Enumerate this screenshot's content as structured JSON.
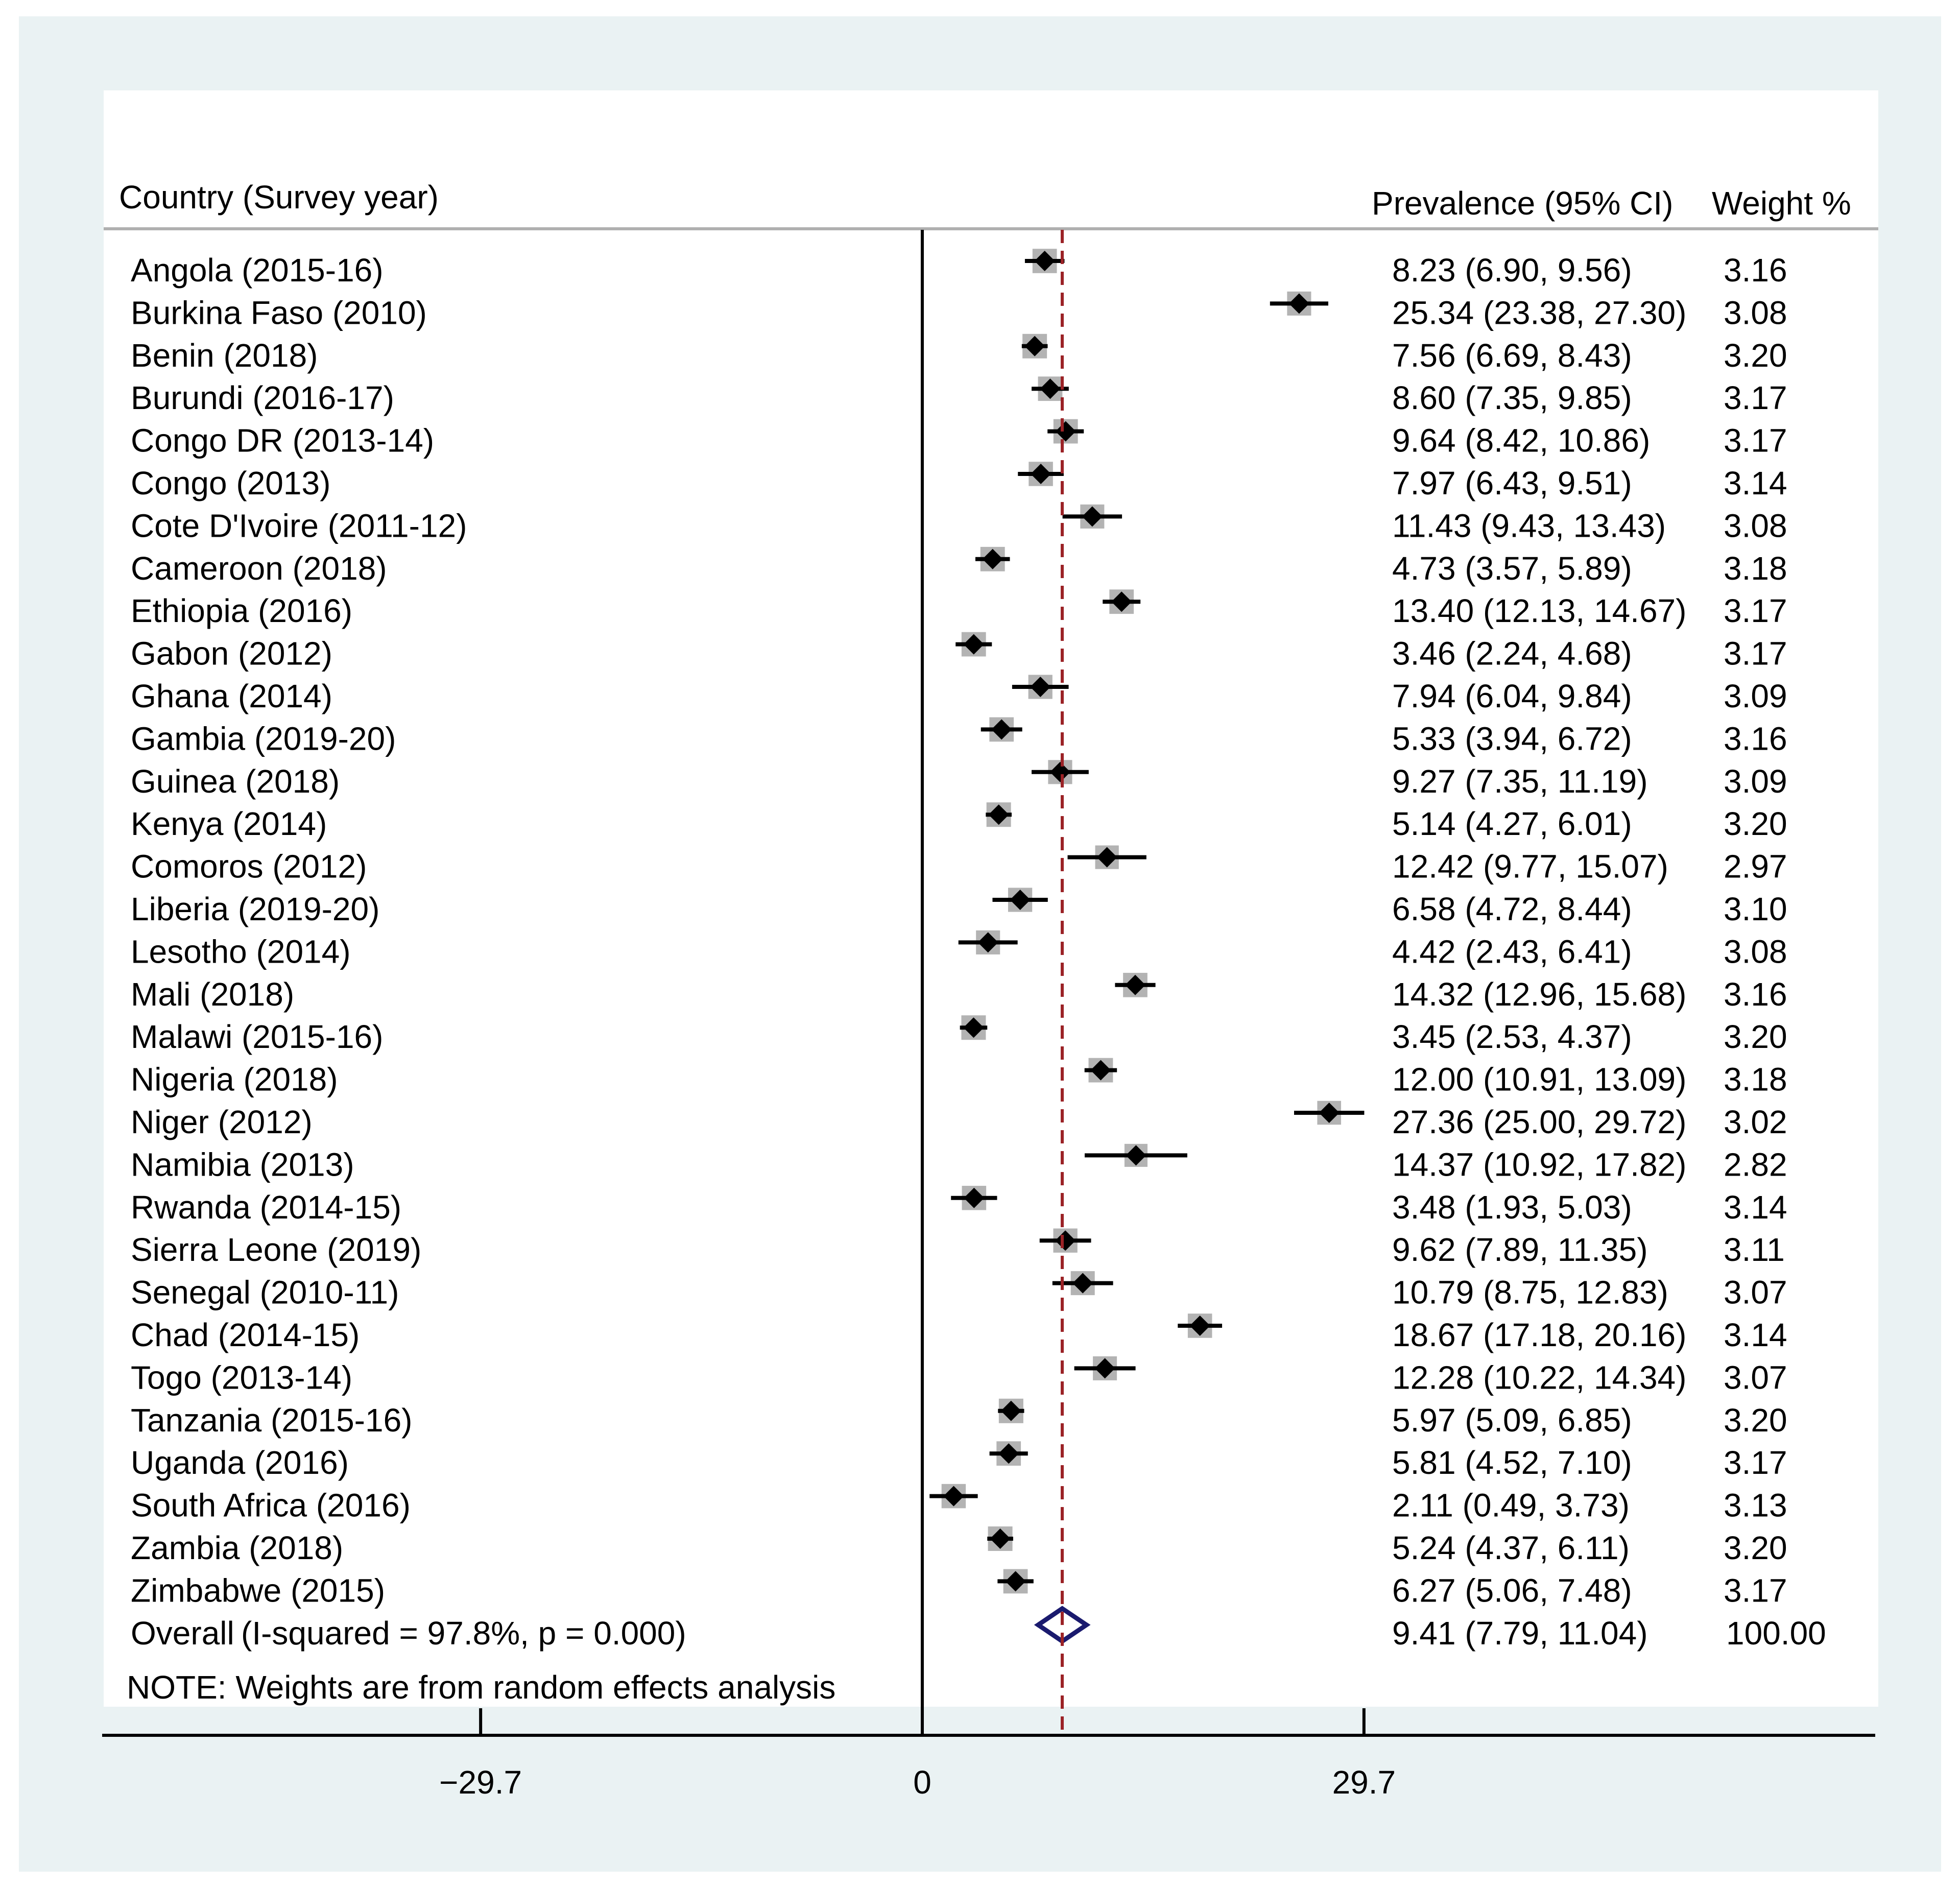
{
  "chart_data": {
    "type": "forest",
    "header": {
      "study_label": "Country (Survey year)",
      "estimate_label": "Prevalence (95% CI)",
      "weight_label": "Weight %"
    },
    "x_axis": {
      "ticks": [
        -29.7,
        0,
        29.7
      ],
      "tick_labels": [
        "−29.7",
        "0",
        "29.7"
      ],
      "xlim": [
        -55,
        64.5
      ]
    },
    "reference_line_value": 9.41,
    "studies": [
      {
        "label": "Angola (2015-16)",
        "est": 8.23,
        "lo": 6.9,
        "hi": 9.56,
        "ci_text": "8.23 (6.90, 9.56)",
        "weight": "3.16"
      },
      {
        "label": "Burkina Faso (2010)",
        "est": 25.34,
        "lo": 23.38,
        "hi": 27.3,
        "ci_text": "25.34 (23.38, 27.30)",
        "weight": "3.08"
      },
      {
        "label": "Benin (2018)",
        "est": 7.56,
        "lo": 6.69,
        "hi": 8.43,
        "ci_text": "7.56 (6.69, 8.43)",
        "weight": "3.20"
      },
      {
        "label": "Burundi (2016-17)",
        "est": 8.6,
        "lo": 7.35,
        "hi": 9.85,
        "ci_text": "8.60 (7.35, 9.85)",
        "weight": "3.17"
      },
      {
        "label": "Congo DR (2013-14)",
        "est": 9.64,
        "lo": 8.42,
        "hi": 10.86,
        "ci_text": "9.64 (8.42, 10.86)",
        "weight": "3.17"
      },
      {
        "label": "Congo (2013)",
        "est": 7.97,
        "lo": 6.43,
        "hi": 9.51,
        "ci_text": "7.97 (6.43, 9.51)",
        "weight": "3.14"
      },
      {
        "label": "Cote D'Ivoire (2011-12)",
        "est": 11.43,
        "lo": 9.43,
        "hi": 13.43,
        "ci_text": "11.43 (9.43, 13.43)",
        "weight": "3.08"
      },
      {
        "label": "Cameroon (2018)",
        "est": 4.73,
        "lo": 3.57,
        "hi": 5.89,
        "ci_text": "4.73 (3.57, 5.89)",
        "weight": "3.18"
      },
      {
        "label": "Ethiopia (2016)",
        "est": 13.4,
        "lo": 12.13,
        "hi": 14.67,
        "ci_text": "13.40 (12.13, 14.67)",
        "weight": "3.17"
      },
      {
        "label": "Gabon (2012)",
        "est": 3.46,
        "lo": 2.24,
        "hi": 4.68,
        "ci_text": "3.46 (2.24, 4.68)",
        "weight": "3.17"
      },
      {
        "label": "Ghana (2014)",
        "est": 7.94,
        "lo": 6.04,
        "hi": 9.84,
        "ci_text": "7.94 (6.04, 9.84)",
        "weight": "3.09"
      },
      {
        "label": "Gambia (2019-20)",
        "est": 5.33,
        "lo": 3.94,
        "hi": 6.72,
        "ci_text": "5.33 (3.94, 6.72)",
        "weight": "3.16"
      },
      {
        "label": "Guinea (2018)",
        "est": 9.27,
        "lo": 7.35,
        "hi": 11.19,
        "ci_text": "9.27 (7.35, 11.19)",
        "weight": "3.09"
      },
      {
        "label": "Kenya (2014)",
        "est": 5.14,
        "lo": 4.27,
        "hi": 6.01,
        "ci_text": "5.14 (4.27, 6.01)",
        "weight": "3.20"
      },
      {
        "label": "Comoros (2012)",
        "est": 12.42,
        "lo": 9.77,
        "hi": 15.07,
        "ci_text": "12.42 (9.77, 15.07)",
        "weight": "2.97"
      },
      {
        "label": "Liberia (2019-20)",
        "est": 6.58,
        "lo": 4.72,
        "hi": 8.44,
        "ci_text": "6.58 (4.72, 8.44)",
        "weight": "3.10"
      },
      {
        "label": "Lesotho (2014)",
        "est": 4.42,
        "lo": 2.43,
        "hi": 6.41,
        "ci_text": "4.42 (2.43, 6.41)",
        "weight": "3.08"
      },
      {
        "label": "Mali (2018)",
        "est": 14.32,
        "lo": 12.96,
        "hi": 15.68,
        "ci_text": "14.32 (12.96, 15.68)",
        "weight": "3.16"
      },
      {
        "label": "Malawi (2015-16)",
        "est": 3.45,
        "lo": 2.53,
        "hi": 4.37,
        "ci_text": "3.45 (2.53, 4.37)",
        "weight": "3.20"
      },
      {
        "label": "Nigeria (2018)",
        "est": 12.0,
        "lo": 10.91,
        "hi": 13.09,
        "ci_text": "12.00 (10.91, 13.09)",
        "weight": "3.18"
      },
      {
        "label": "Niger (2012)",
        "est": 27.36,
        "lo": 25.0,
        "hi": 29.72,
        "ci_text": "27.36 (25.00, 29.72)",
        "weight": "3.02"
      },
      {
        "label": "Namibia (2013)",
        "est": 14.37,
        "lo": 10.92,
        "hi": 17.82,
        "ci_text": "14.37 (10.92, 17.82)",
        "weight": "2.82"
      },
      {
        "label": "Rwanda (2014-15)",
        "est": 3.48,
        "lo": 1.93,
        "hi": 5.03,
        "ci_text": "3.48 (1.93, 5.03)",
        "weight": "3.14"
      },
      {
        "label": "Sierra Leone (2019)",
        "est": 9.62,
        "lo": 7.89,
        "hi": 11.35,
        "ci_text": "9.62 (7.89, 11.35)",
        "weight": "3.11"
      },
      {
        "label": "Senegal (2010-11)",
        "est": 10.79,
        "lo": 8.75,
        "hi": 12.83,
        "ci_text": "10.79 (8.75, 12.83)",
        "weight": "3.07"
      },
      {
        "label": "Chad (2014-15)",
        "est": 18.67,
        "lo": 17.18,
        "hi": 20.16,
        "ci_text": "18.67 (17.18, 20.16)",
        "weight": "3.14"
      },
      {
        "label": "Togo (2013-14)",
        "est": 12.28,
        "lo": 10.22,
        "hi": 14.34,
        "ci_text": "12.28 (10.22, 14.34)",
        "weight": "3.07"
      },
      {
        "label": "Tanzania (2015-16)",
        "est": 5.97,
        "lo": 5.09,
        "hi": 6.85,
        "ci_text": "5.97 (5.09, 6.85)",
        "weight": "3.20"
      },
      {
        "label": "Uganda (2016)",
        "est": 5.81,
        "lo": 4.52,
        "hi": 7.1,
        "ci_text": "5.81 (4.52, 7.10)",
        "weight": "3.17"
      },
      {
        "label": "South Africa (2016)",
        "est": 2.11,
        "lo": 0.49,
        "hi": 3.73,
        "ci_text": "2.11 (0.49, 3.73)",
        "weight": "3.13"
      },
      {
        "label": "Zambia (2018)",
        "est": 5.24,
        "lo": 4.37,
        "hi": 6.11,
        "ci_text": "5.24 (4.37, 6.11)",
        "weight": "3.20"
      },
      {
        "label": "Zimbabwe (2015)",
        "est": 6.27,
        "lo": 5.06,
        "hi": 7.48,
        "ci_text": "6.27 (5.06, 7.48)",
        "weight": "3.17"
      }
    ],
    "overall": {
      "label": "Overall",
      "heterogeneity": "(I-squared = 97.8%, p = 0.000)",
      "est": 9.41,
      "lo": 7.79,
      "hi": 11.04,
      "ci_text": "9.41 (7.79, 11.04)",
      "weight": "100.00"
    },
    "note": "NOTE: Weights are from random effects analysis",
    "colors": {
      "marker": "#000000",
      "weight_box": "#b3b3b3",
      "reference_line": "#9b2226",
      "overall_diamond": "#1a1a6e",
      "outer_background": "#eaf2f3",
      "panel_background": "#ffffff"
    }
  }
}
